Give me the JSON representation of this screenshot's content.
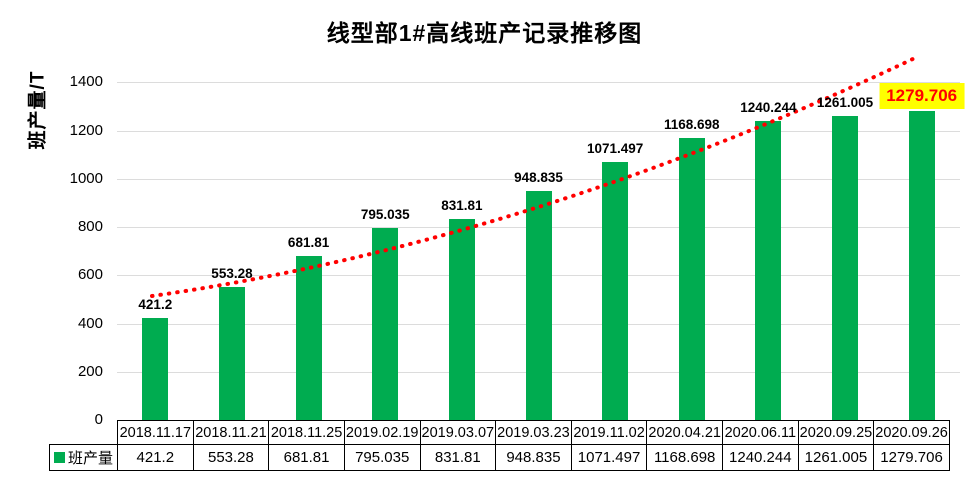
{
  "title": "线型部1#高线班产记录推移图",
  "y_axis": {
    "label": "班产量/T",
    "ticks": [
      0,
      200,
      400,
      600,
      800,
      1000,
      1200,
      1400
    ]
  },
  "legend": {
    "label": "班产量"
  },
  "colors": {
    "bar": "#00AC50",
    "trend": "#FF0000",
    "gridline": "#DCDCDC",
    "highlight_bg": "#FFFF00",
    "highlight_text": "#FF0000",
    "table_border": "#000000"
  },
  "chart_data": {
    "type": "bar",
    "title": "线型部1#高线班产记录推移图",
    "ylabel": "班产量/T",
    "ylim": [
      0,
      1505
    ],
    "grid": true,
    "legend_position": "table-left",
    "categories": [
      "2018.11.17",
      "2018.11.21",
      "2018.11.25",
      "2019.02.19",
      "2019.03.07",
      "2019.03.23",
      "2019.11.02",
      "2020.04.21",
      "2020.06.11",
      "2020.09.25",
      "2020.09.26"
    ],
    "series": [
      {
        "name": "班产量",
        "values": [
          421.2,
          553.28,
          681.81,
          795.035,
          831.81,
          948.835,
          1071.497,
          1168.698,
          1240.244,
          1261.005,
          1279.706
        ]
      }
    ],
    "value_labels": [
      "421.2",
      "553.28",
      "681.81",
      "795.035",
      "831.81",
      "948.835",
      "1071.497",
      "1168.698",
      "1240.244",
      "1261.005",
      "1279.706"
    ],
    "trendline": {
      "style": "dotted",
      "color": "#FF0000",
      "shape": "exponential"
    },
    "highlight_index": 10
  }
}
